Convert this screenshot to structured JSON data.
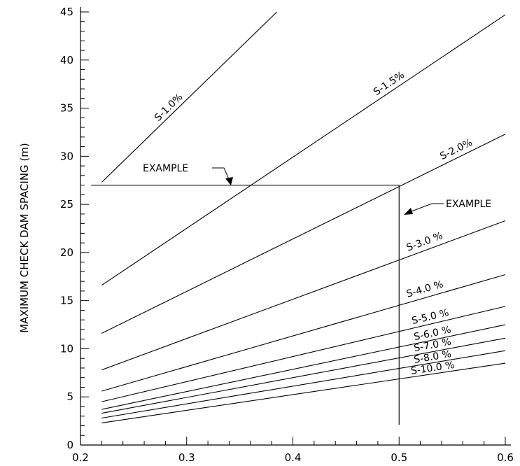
{
  "chart_data": {
    "type": "line",
    "title": "",
    "xlabel": "",
    "ylabel": "MAXIMUM CHECK DAM SPACING (m)",
    "xlim": [
      0.2,
      0.6
    ],
    "ylim": [
      0,
      45
    ],
    "x_ticks": [
      "0.2",
      "0.3",
      "0.4",
      "0.5",
      "0.6"
    ],
    "y_ticks": [
      "0",
      "5",
      "10",
      "15",
      "20",
      "25",
      "30",
      "35",
      "40",
      "45"
    ],
    "grid": false,
    "legend": "none",
    "series": [
      {
        "name": "S-1.0%",
        "points": [
          [
            0.22,
            27.3
          ],
          [
            0.385,
            45.0
          ]
        ]
      },
      {
        "name": "S-1.5%",
        "points": [
          [
            0.22,
            16.6
          ],
          [
            0.6,
            44.7
          ]
        ]
      },
      {
        "name": "S-2.0%",
        "points": [
          [
            0.22,
            11.6
          ],
          [
            0.6,
            32.3
          ]
        ]
      },
      {
        "name": "S-3.0 %",
        "points": [
          [
            0.22,
            7.8
          ],
          [
            0.6,
            23.3
          ]
        ]
      },
      {
        "name": "S-4.0 %",
        "points": [
          [
            0.22,
            5.6
          ],
          [
            0.6,
            17.7
          ]
        ]
      },
      {
        "name": "S-5.0 %",
        "points": [
          [
            0.22,
            4.5
          ],
          [
            0.6,
            14.4
          ]
        ]
      },
      {
        "name": "S-6.0 %",
        "points": [
          [
            0.22,
            3.7
          ],
          [
            0.6,
            12.5
          ]
        ]
      },
      {
        "name": "S-7.0 %",
        "points": [
          [
            0.22,
            3.3
          ],
          [
            0.6,
            11.1
          ]
        ]
      },
      {
        "name": "S-8.0 %",
        "points": [
          [
            0.22,
            2.8
          ],
          [
            0.6,
            9.8
          ]
        ]
      },
      {
        "name": "S-10.0 %",
        "points": [
          [
            0.22,
            2.3
          ],
          [
            0.6,
            8.5
          ]
        ]
      }
    ],
    "example": {
      "label_left": "EXAMPLE",
      "label_right": "EXAMPLE",
      "x": 0.5,
      "y": 27.0
    }
  }
}
